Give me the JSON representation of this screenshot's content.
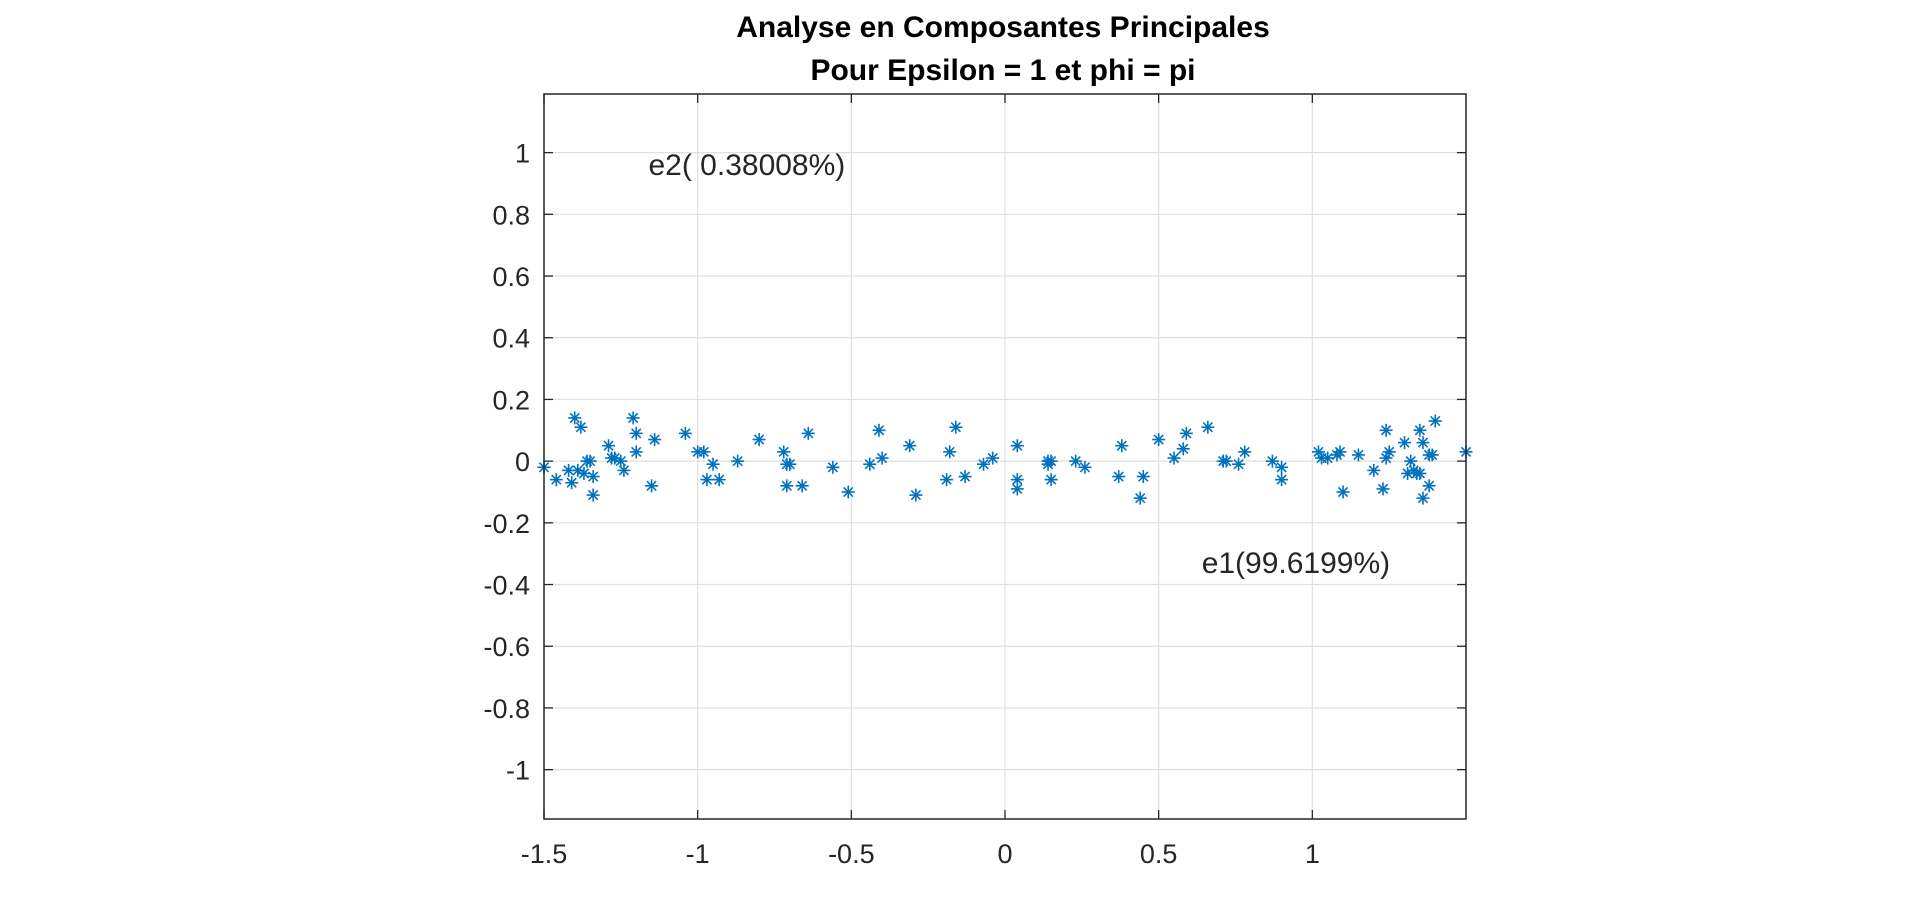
{
  "chart_data": {
    "type": "scatter",
    "title": [
      "Analyse en Composantes Principales",
      "Pour Epsilon = 1 et phi = pi"
    ],
    "xlabel": "",
    "ylabel": "",
    "xlim": [
      -1.5,
      1.5
    ],
    "ylim": [
      -1.16,
      1.19
    ],
    "xticks": [
      -1.5,
      -1,
      -0.5,
      0,
      0.5,
      1
    ],
    "xtick_labels": [
      "-1.5",
      "-1",
      "-0.5",
      "0",
      "0.5",
      "1"
    ],
    "yticks": [
      1,
      0.8,
      0.6,
      0.4,
      0.2,
      0,
      -0.2,
      -0.4,
      -0.6,
      -0.8,
      -1
    ],
    "ytick_labels": [
      "1",
      "0.8",
      "0.6",
      "0.4",
      "0.2",
      "0",
      "-0.2",
      "-0.4",
      "-0.6",
      "-0.8",
      "-1"
    ],
    "grid": true,
    "marker": "*",
    "marker_color": "#0072BD",
    "annotations": [
      {
        "text": "e2( 0.38008%)",
        "x": -1.16,
        "y": 0.96
      },
      {
        "text": "e1(99.6199%)",
        "x": 0.64,
        "y": -0.33
      }
    ],
    "points": [
      [
        -1.5,
        -0.02
      ],
      [
        -1.46,
        -0.06
      ],
      [
        -1.42,
        -0.03
      ],
      [
        -1.41,
        -0.07
      ],
      [
        -1.4,
        0.14
      ],
      [
        -1.39,
        -0.03
      ],
      [
        -1.38,
        0.11
      ],
      [
        -1.37,
        -0.04
      ],
      [
        -1.36,
        0.0
      ],
      [
        -1.35,
        0.0
      ],
      [
        -1.34,
        -0.11
      ],
      [
        -1.34,
        -0.05
      ],
      [
        -1.29,
        0.05
      ],
      [
        -1.28,
        0.01
      ],
      [
        -1.27,
        0.01
      ],
      [
        -1.25,
        0.0
      ],
      [
        -1.24,
        -0.03
      ],
      [
        -1.21,
        0.14
      ],
      [
        -1.2,
        0.09
      ],
      [
        -1.2,
        0.03
      ],
      [
        -1.15,
        -0.08
      ],
      [
        -1.14,
        0.07
      ],
      [
        -1.04,
        0.09
      ],
      [
        -1.0,
        0.03
      ],
      [
        -0.98,
        0.03
      ],
      [
        -0.97,
        -0.06
      ],
      [
        -0.95,
        -0.01
      ],
      [
        -0.93,
        -0.06
      ],
      [
        -0.87,
        0.0
      ],
      [
        -0.8,
        0.07
      ],
      [
        -0.72,
        0.03
      ],
      [
        -0.71,
        -0.01
      ],
      [
        -0.71,
        -0.08
      ],
      [
        -0.7,
        -0.01
      ],
      [
        -0.66,
        -0.08
      ],
      [
        -0.64,
        0.09
      ],
      [
        -0.56,
        -0.02
      ],
      [
        -0.51,
        -0.1
      ],
      [
        -0.44,
        -0.01
      ],
      [
        -0.41,
        0.1
      ],
      [
        -0.4,
        0.01
      ],
      [
        -0.31,
        0.05
      ],
      [
        -0.29,
        -0.11
      ],
      [
        -0.19,
        -0.06
      ],
      [
        -0.18,
        0.03
      ],
      [
        -0.16,
        0.11
      ],
      [
        -0.13,
        -0.05
      ],
      [
        -0.07,
        -0.01
      ],
      [
        -0.04,
        0.01
      ],
      [
        0.04,
        0.05
      ],
      [
        0.04,
        -0.06
      ],
      [
        0.04,
        -0.09
      ],
      [
        0.14,
        0.0
      ],
      [
        0.14,
        -0.01
      ],
      [
        0.15,
        0.0
      ],
      [
        0.15,
        -0.06
      ],
      [
        0.23,
        0.0
      ],
      [
        0.26,
        -0.02
      ],
      [
        0.37,
        -0.05
      ],
      [
        0.38,
        0.05
      ],
      [
        0.44,
        -0.12
      ],
      [
        0.45,
        -0.05
      ],
      [
        0.5,
        0.07
      ],
      [
        0.55,
        0.01
      ],
      [
        0.58,
        0.04
      ],
      [
        0.59,
        0.09
      ],
      [
        0.66,
        0.11
      ],
      [
        0.71,
        0.0
      ],
      [
        0.72,
        0.0
      ],
      [
        0.76,
        -0.01
      ],
      [
        0.78,
        0.03
      ],
      [
        0.87,
        0.0
      ],
      [
        0.9,
        -0.02
      ],
      [
        0.9,
        -0.06
      ],
      [
        1.02,
        0.03
      ],
      [
        1.03,
        0.01
      ],
      [
        1.05,
        0.01
      ],
      [
        1.08,
        0.02
      ],
      [
        1.09,
        0.03
      ],
      [
        1.1,
        -0.1
      ],
      [
        1.15,
        0.02
      ],
      [
        1.2,
        -0.03
      ],
      [
        1.23,
        -0.09
      ],
      [
        1.24,
        0.1
      ],
      [
        1.24,
        0.01
      ],
      [
        1.25,
        0.03
      ],
      [
        1.3,
        0.06
      ],
      [
        1.31,
        -0.04
      ],
      [
        1.32,
        0.0
      ],
      [
        1.33,
        -0.03
      ],
      [
        1.34,
        -0.04
      ],
      [
        1.35,
        0.1
      ],
      [
        1.35,
        -0.04
      ],
      [
        1.36,
        0.06
      ],
      [
        1.36,
        -0.12
      ],
      [
        1.38,
        0.02
      ],
      [
        1.38,
        -0.08
      ],
      [
        1.39,
        0.02
      ],
      [
        1.4,
        0.13
      ],
      [
        1.5,
        0.03
      ]
    ]
  }
}
